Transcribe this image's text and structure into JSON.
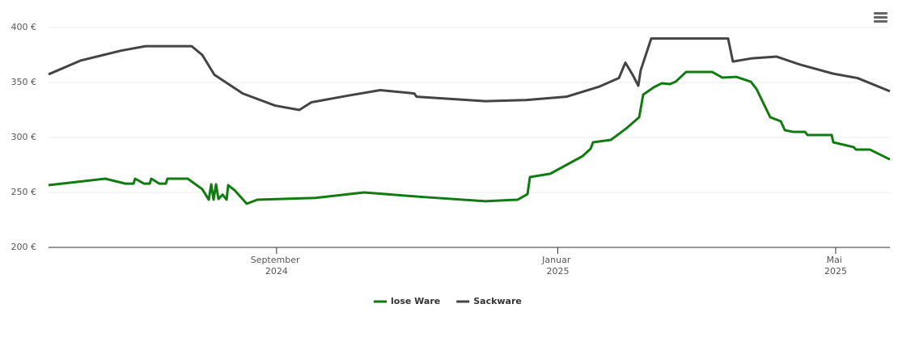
{
  "chart_data": {
    "type": "line",
    "ylim": [
      200,
      400
    ],
    "yticks": [
      {
        "value": 200,
        "label": "200 €"
      },
      {
        "value": 250,
        "label": "250 €"
      },
      {
        "value": 300,
        "label": "300 €"
      },
      {
        "value": 350,
        "label": "350 €"
      },
      {
        "value": 400,
        "label": "400 €"
      }
    ],
    "xlim": [
      2024.397,
      2025.3932
    ],
    "xticks": [
      {
        "value": 2024.667,
        "label": "September 2024"
      },
      {
        "value": 2025.0,
        "label": "Januar 2025"
      },
      {
        "value": 2025.329,
        "label": "Mai 2025"
      }
    ],
    "grid": true,
    "legend": "bottom",
    "series": [
      {
        "name": "lose Ware",
        "color": "#117a11",
        "x": [
          2024.397,
          2024.4641,
          2024.488,
          2024.4976,
          2024.4995,
          2024.51,
          2024.5167,
          2024.5187,
          2024.5282,
          2024.5359,
          2024.5378,
          2024.5618,
          2024.579,
          2024.5867,
          2024.5896,
          2024.5924,
          2024.5953,
          2024.5982,
          2024.603,
          2024.6078,
          2024.6097,
          2024.6173,
          2024.6317,
          2024.6442,
          2024.7131,
          2024.7706,
          2024.8377,
          2024.9142,
          2024.9526,
          2024.9641,
          2024.967,
          2024.991,
          2025.0293,
          2025.0388,
          2025.0417,
          2025.0628,
          2025.082,
          2025.0963,
          2025.1011,
          2025.1136,
          2025.1232,
          2025.1327,
          2025.1395,
          2025.1519,
          2025.1826,
          2025.195,
          2025.2113,
          2025.2285,
          2025.2352,
          2025.2515,
          2025.264,
          2025.2688,
          2025.2784,
          2025.2927,
          2025.2956,
          2025.3243,
          2025.3261,
          2025.3502,
          2025.3531,
          2025.3694,
          2025.3932
        ],
        "values": [
          256.6,
          262.5,
          258,
          258,
          262.5,
          258,
          258,
          262.5,
          258,
          258,
          262.5,
          262.5,
          253,
          243.4,
          257.4,
          243.4,
          257.4,
          244,
          248,
          243.4,
          256.6,
          252,
          239.7,
          243.4,
          245,
          250,
          246,
          242,
          243.4,
          248.5,
          264,
          267,
          283,
          289.7,
          295.6,
          297.8,
          308.8,
          318.4,
          339,
          345.6,
          349.3,
          348.5,
          350.7,
          359.6,
          359.6,
          354.4,
          355.1,
          350.7,
          344.1,
          318.4,
          314.7,
          306.6,
          305.1,
          305.1,
          302.2,
          302.2,
          295.6,
          291.2,
          289,
          289,
          280
        ]
      },
      {
        "name": "Sackware",
        "color": "#444444",
        "x": [
          2024.397,
          2024.4353,
          2024.4832,
          2024.5119,
          2024.5665,
          2024.579,
          2024.5934,
          2024.6269,
          2024.6652,
          2024.6939,
          2024.7083,
          2024.7514,
          2024.7897,
          2024.83,
          2024.8328,
          2024.9142,
          2024.9621,
          2025.01,
          2025.0483,
          2025.0723,
          2025.08,
          2025.0886,
          2025.0953,
          2025.0981,
          2025.1106,
          2025.2016,
          2025.2073,
          2025.2303,
          2025.2591,
          2025.2878,
          2025.3261,
          2025.3549,
          2025.3932
        ],
        "values": [
          357.4,
          370,
          379,
          383,
          383,
          375,
          357,
          340,
          329,
          325,
          332,
          338,
          343,
          340,
          337,
          333,
          334,
          337,
          346,
          354,
          368,
          357,
          347,
          361,
          390,
          390,
          369,
          372,
          373.5,
          366,
          358,
          354,
          342
        ]
      }
    ]
  }
}
